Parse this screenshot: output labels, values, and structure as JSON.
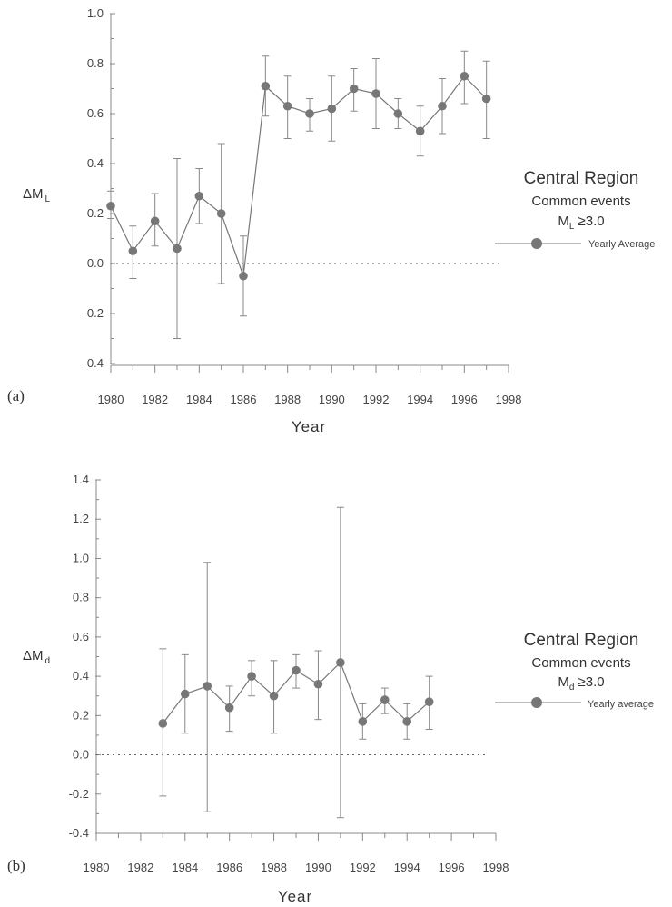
{
  "chart_data": [
    {
      "type": "line",
      "panel_label": "(a)",
      "ylabel_main": "ΔM",
      "ylabel_sub": "L",
      "xlabel": "Year",
      "xlim": [
        1980,
        1998
      ],
      "ylim": [
        -0.4,
        1.0
      ],
      "x_ticks": [
        "1980",
        "1982",
        "1984",
        "1986",
        "1988",
        "1990",
        "1992",
        "1994",
        "1996",
        "1998"
      ],
      "y_ticks": [
        "1.0",
        "0.8",
        "0.6",
        "0.4",
        "0.2",
        "0.0",
        "-0.2",
        "-0.4"
      ],
      "zero_line": true,
      "legend": {
        "title": "Central Region",
        "line1": "Common events",
        "line2_main": "M",
        "line2_sub": "L",
        "line2_rest": " ≥3.0",
        "series_label": "Yearly Average"
      },
      "series": [
        {
          "name": "Yearly Average",
          "x": [
            1980,
            1981,
            1982,
            1983,
            1984,
            1985,
            1986,
            1987,
            1988,
            1989,
            1990,
            1991,
            1992,
            1993,
            1994,
            1995,
            1996,
            1997
          ],
          "y": [
            0.23,
            0.05,
            0.17,
            0.06,
            0.27,
            0.2,
            -0.05,
            0.71,
            0.63,
            0.6,
            0.62,
            0.7,
            0.68,
            0.6,
            0.53,
            0.63,
            0.75,
            0.66
          ],
          "err_low": [
            0.18,
            -0.06,
            0.07,
            -0.3,
            0.16,
            -0.08,
            -0.21,
            0.59,
            0.5,
            0.53,
            0.49,
            0.61,
            0.54,
            0.54,
            0.43,
            0.52,
            0.64,
            0.5
          ],
          "err_high": [
            0.29,
            0.15,
            0.28,
            0.42,
            0.38,
            0.48,
            0.11,
            0.83,
            0.75,
            0.66,
            0.75,
            0.78,
            0.82,
            0.66,
            0.63,
            0.74,
            0.85,
            0.81
          ]
        }
      ]
    },
    {
      "type": "line",
      "panel_label": "(b)",
      "ylabel_main": "ΔM",
      "ylabel_sub": "d",
      "xlabel": "Year",
      "xlim": [
        1980,
        1998
      ],
      "ylim": [
        -0.4,
        1.4
      ],
      "x_ticks": [
        "1980",
        "1982",
        "1984",
        "1986",
        "1988",
        "1990",
        "1992",
        "1994",
        "1996",
        "1998"
      ],
      "y_ticks": [
        "1.4",
        "1.2",
        "1.0",
        "0.8",
        "0.6",
        "0.4",
        "0.2",
        "0.0",
        "-0.2",
        "-0.4"
      ],
      "zero_line": true,
      "legend": {
        "title": "Central Region",
        "line1": "Common events",
        "line2_main": "M",
        "line2_sub": "d",
        "line2_rest": " ≥3.0",
        "series_label": "Yearly average"
      },
      "series": [
        {
          "name": "Yearly average",
          "x": [
            1983,
            1984,
            1985,
            1986,
            1987,
            1988,
            1989,
            1990,
            1991,
            1992,
            1993,
            1994,
            1995
          ],
          "y": [
            0.16,
            0.31,
            0.35,
            0.24,
            0.4,
            0.3,
            0.43,
            0.36,
            0.47,
            0.17,
            0.28,
            0.17,
            0.27
          ],
          "err_low": [
            -0.21,
            0.11,
            -0.29,
            0.12,
            0.3,
            0.11,
            0.34,
            0.18,
            -0.32,
            0.08,
            0.21,
            0.08,
            0.13
          ],
          "err_high": [
            0.54,
            0.51,
            0.98,
            0.35,
            0.48,
            0.48,
            0.51,
            0.53,
            1.26,
            0.26,
            0.34,
            0.26,
            0.4
          ]
        }
      ]
    }
  ]
}
